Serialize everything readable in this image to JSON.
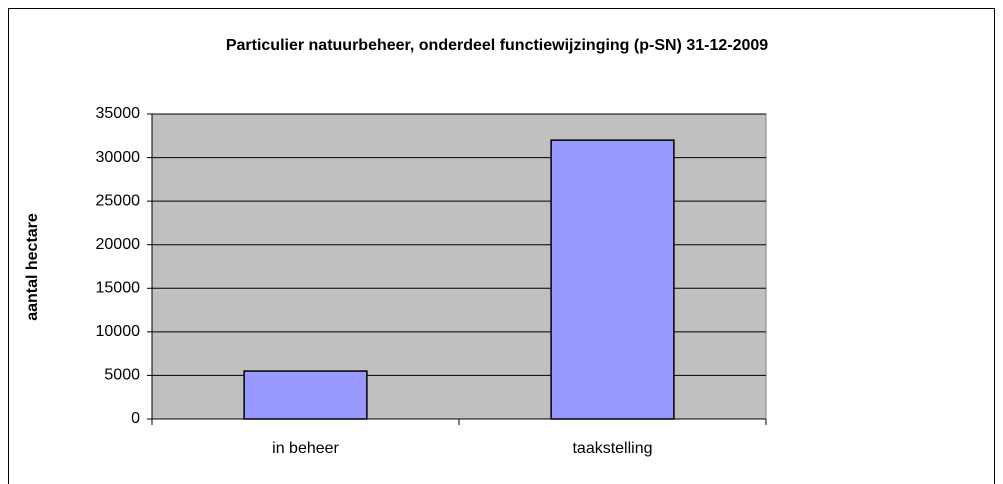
{
  "chart_data": {
    "type": "bar",
    "title": "Particulier natuurbeheer, onderdeel functiewijzinging (p-SN) 31-12-2009",
    "y_label": "aantal hectare",
    "categories": [
      "in beheer",
      "taakstelling"
    ],
    "values": [
      5500,
      32000
    ],
    "color": "#9999ff",
    "ylim": [
      0,
      35000
    ],
    "yticks": [
      0,
      5000,
      10000,
      15000,
      20000,
      25000,
      30000,
      35000
    ],
    "grid": true
  }
}
